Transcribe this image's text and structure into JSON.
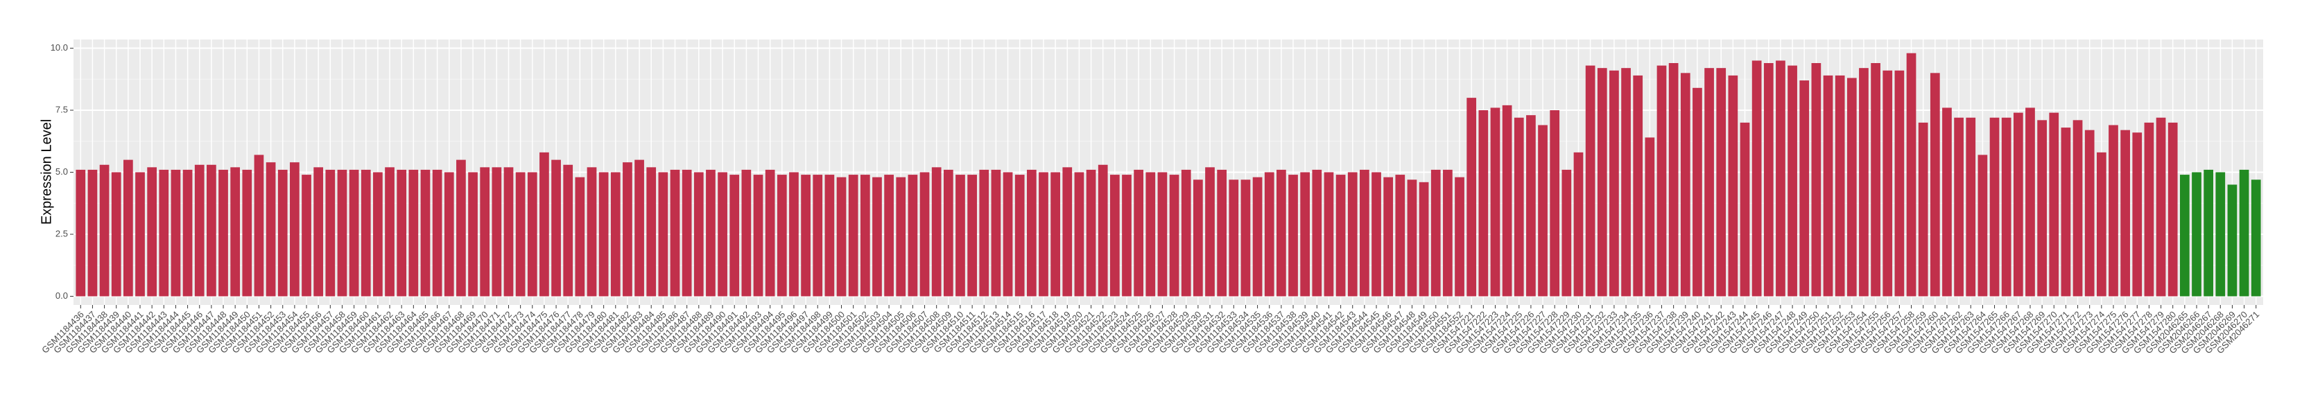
{
  "chart_data": {
    "type": "bar",
    "ylabel": "Expression Level",
    "categories": [
      "GSM1184436",
      "GSM1184437",
      "GSM1184438",
      "GSM1184439",
      "GSM1184440",
      "GSM1184441",
      "GSM1184442",
      "GSM1184443",
      "GSM1184444",
      "GSM1184445",
      "GSM1184446",
      "GSM1184447",
      "GSM1184448",
      "GSM1184449",
      "GSM1184450",
      "GSM1184451",
      "GSM1184452",
      "GSM1184453",
      "GSM1184454",
      "GSM1184455",
      "GSM1184456",
      "GSM1184457",
      "GSM1184458",
      "GSM1184459",
      "GSM1184460",
      "GSM1184461",
      "GSM1184462",
      "GSM1184463",
      "GSM1184464",
      "GSM1184465",
      "GSM1184466",
      "GSM1184467",
      "GSM1184468",
      "GSM1184469",
      "GSM1184470",
      "GSM1184471",
      "GSM1184472",
      "GSM1184473",
      "GSM1184474",
      "GSM1184475",
      "GSM1184476",
      "GSM1184477",
      "GSM1184478",
      "GSM1184479",
      "GSM1184480",
      "GSM1184481",
      "GSM1184482",
      "GSM1184483",
      "GSM1184484",
      "GSM1184485",
      "GSM1184486",
      "GSM1184487",
      "GSM1184488",
      "GSM1184489",
      "GSM1184490",
      "GSM1184491",
      "GSM1184492",
      "GSM1184493",
      "GSM1184494",
      "GSM1184495",
      "GSM1184496",
      "GSM1184497",
      "GSM1184498",
      "GSM1184499",
      "GSM1184500",
      "GSM1184501",
      "GSM1184502",
      "GSM1184503",
      "GSM1184504",
      "GSM1184505",
      "GSM1184506",
      "GSM1184507",
      "GSM1184508",
      "GSM1184509",
      "GSM1184510",
      "GSM1184511",
      "GSM1184512",
      "GSM1184513",
      "GSM1184514",
      "GSM1184515",
      "GSM1184516",
      "GSM1184517",
      "GSM1184518",
      "GSM1184519",
      "GSM1184520",
      "GSM1184521",
      "GSM1184522",
      "GSM1184523",
      "GSM1184524",
      "GSM1184525",
      "GSM1184526",
      "GSM1184527",
      "GSM1184528",
      "GSM1184529",
      "GSM1184530",
      "GSM1184531",
      "GSM1184532",
      "GSM1184533",
      "GSM1184534",
      "GSM1184535",
      "GSM1184536",
      "GSM1184537",
      "GSM1184538",
      "GSM1184539",
      "GSM1184540",
      "GSM1184541",
      "GSM1184542",
      "GSM1184543",
      "GSM1184544",
      "GSM1184545",
      "GSM1184546",
      "GSM1184547",
      "GSM1184548",
      "GSM1184549",
      "GSM1184550",
      "GSM1184551",
      "GSM1184552",
      "GSM1547221",
      "GSM1547222",
      "GSM1547223",
      "GSM1547224",
      "GSM1547225",
      "GSM1547226",
      "GSM1547227",
      "GSM1547228",
      "GSM1547229",
      "GSM1547230",
      "GSM1547231",
      "GSM1547232",
      "GSM1547233",
      "GSM1547234",
      "GSM1547235",
      "GSM1547236",
      "GSM1547237",
      "GSM1547238",
      "GSM1547239",
      "GSM1547240",
      "GSM1547241",
      "GSM1547242",
      "GSM1547243",
      "GSM1547244",
      "GSM1547245",
      "GSM1547246",
      "GSM1547247",
      "GSM1547248",
      "GSM1547249",
      "GSM1547250",
      "GSM1547251",
      "GSM1547252",
      "GSM1547253",
      "GSM1547254",
      "GSM1547255",
      "GSM1547256",
      "GSM1547257",
      "GSM1547258",
      "GSM1547259",
      "GSM1547260",
      "GSM1547261",
      "GSM1547262",
      "GSM1547263",
      "GSM1547264",
      "GSM1547265",
      "GSM1547266",
      "GSM1547267",
      "GSM1547268",
      "GSM1547269",
      "GSM1547270",
      "GSM1547271",
      "GSM1547272",
      "GSM1547273",
      "GSM1547274",
      "GSM1547275",
      "GSM1547276",
      "GSM1547277",
      "GSM1547278",
      "GSM1547279",
      "GSM1547280",
      "GSM2046265",
      "GSM2046266",
      "GSM2046267",
      "GSM2046268",
      "GSM2046269",
      "GSM2046270",
      "GSM2046271"
    ],
    "values": [
      5.1,
      5.1,
      5.3,
      5.0,
      5.5,
      5.0,
      5.2,
      5.1,
      5.1,
      5.1,
      5.3,
      5.3,
      5.1,
      5.2,
      5.1,
      5.7,
      5.4,
      5.1,
      5.4,
      4.9,
      5.2,
      5.1,
      5.1,
      5.1,
      5.1,
      5.0,
      5.2,
      5.1,
      5.1,
      5.1,
      5.1,
      5.0,
      5.5,
      5.0,
      5.2,
      5.2,
      5.2,
      5.0,
      5.0,
      5.8,
      5.5,
      5.3,
      4.8,
      5.2,
      5.0,
      5.0,
      5.4,
      5.5,
      5.2,
      5.0,
      5.1,
      5.1,
      5.0,
      5.1,
      5.0,
      4.9,
      5.1,
      4.9,
      5.1,
      4.9,
      5.0,
      4.9,
      4.9,
      4.9,
      4.8,
      4.9,
      4.9,
      4.8,
      4.9,
      4.8,
      4.9,
      5.0,
      5.2,
      5.1,
      4.9,
      4.9,
      5.1,
      5.1,
      5.0,
      4.9,
      5.1,
      5.0,
      5.0,
      5.2,
      5.0,
      5.1,
      5.3,
      4.9,
      4.9,
      5.1,
      5.0,
      5.0,
      4.9,
      5.1,
      4.7,
      5.2,
      5.1,
      4.7,
      4.7,
      4.8,
      5.0,
      5.1,
      4.9,
      5.0,
      5.1,
      5.0,
      4.9,
      5.0,
      5.1,
      5.0,
      4.8,
      4.9,
      4.7,
      4.6,
      5.1,
      5.1,
      4.8,
      8.0,
      7.5,
      7.6,
      7.7,
      7.2,
      7.3,
      6.9,
      7.5,
      5.1,
      5.8,
      9.3,
      9.2,
      9.1,
      9.2,
      8.9,
      6.4,
      9.3,
      9.4,
      9.0,
      8.4,
      9.2,
      9.2,
      8.9,
      7.0,
      9.5,
      9.4,
      9.5,
      9.3,
      8.7,
      9.4,
      8.9,
      8.9,
      8.8,
      9.2,
      9.4,
      9.1,
      9.1,
      9.8,
      7.0,
      9.0,
      7.6,
      7.2,
      7.2,
      5.7,
      7.2,
      7.2,
      7.4,
      7.6,
      7.1,
      7.4,
      6.8,
      7.1,
      6.7,
      5.8,
      6.9,
      6.7,
      6.6,
      7.0,
      7.2,
      7.0,
      4.9,
      5.0,
      5.1,
      5.0,
      4.5,
      5.1,
      4.7
    ],
    "colors": [
      "#c1304b",
      "#c1304b",
      "#c1304b",
      "#c1304b",
      "#c1304b",
      "#c1304b",
      "#c1304b",
      "#c1304b",
      "#c1304b",
      "#c1304b",
      "#c1304b",
      "#c1304b",
      "#c1304b",
      "#c1304b",
      "#c1304b",
      "#c1304b",
      "#c1304b",
      "#c1304b",
      "#c1304b",
      "#c1304b",
      "#c1304b",
      "#c1304b",
      "#c1304b",
      "#c1304b",
      "#c1304b",
      "#c1304b",
      "#c1304b",
      "#c1304b",
      "#c1304b",
      "#c1304b",
      "#c1304b",
      "#c1304b",
      "#c1304b",
      "#c1304b",
      "#c1304b",
      "#c1304b",
      "#c1304b",
      "#c1304b",
      "#c1304b",
      "#c1304b",
      "#c1304b",
      "#c1304b",
      "#c1304b",
      "#c1304b",
      "#c1304b",
      "#c1304b",
      "#c1304b",
      "#c1304b",
      "#c1304b",
      "#c1304b",
      "#c1304b",
      "#c1304b",
      "#c1304b",
      "#c1304b",
      "#c1304b",
      "#c1304b",
      "#c1304b",
      "#c1304b",
      "#c1304b",
      "#c1304b",
      "#c1304b",
      "#c1304b",
      "#c1304b",
      "#c1304b",
      "#c1304b",
      "#c1304b",
      "#c1304b",
      "#c1304b",
      "#c1304b",
      "#c1304b",
      "#c1304b",
      "#c1304b",
      "#c1304b",
      "#c1304b",
      "#c1304b",
      "#c1304b",
      "#c1304b",
      "#c1304b",
      "#c1304b",
      "#c1304b",
      "#c1304b",
      "#c1304b",
      "#c1304b",
      "#c1304b",
      "#c1304b",
      "#c1304b",
      "#c1304b",
      "#c1304b",
      "#c1304b",
      "#c1304b",
      "#c1304b",
      "#c1304b",
      "#c1304b",
      "#c1304b",
      "#c1304b",
      "#c1304b",
      "#c1304b",
      "#c1304b",
      "#c1304b",
      "#c1304b",
      "#c1304b",
      "#c1304b",
      "#c1304b",
      "#c1304b",
      "#c1304b",
      "#c1304b",
      "#c1304b",
      "#c1304b",
      "#c1304b",
      "#c1304b",
      "#c1304b",
      "#c1304b",
      "#c1304b",
      "#c1304b",
      "#c1304b",
      "#c1304b",
      "#c1304b",
      "#c1304b",
      "#c1304b",
      "#c1304b",
      "#c1304b",
      "#c1304b",
      "#c1304b",
      "#c1304b",
      "#c1304b",
      "#c1304b",
      "#c1304b",
      "#c1304b",
      "#c1304b",
      "#c1304b",
      "#c1304b",
      "#c1304b",
      "#c1304b",
      "#c1304b",
      "#c1304b",
      "#c1304b",
      "#c1304b",
      "#c1304b",
      "#c1304b",
      "#c1304b",
      "#c1304b",
      "#c1304b",
      "#c1304b",
      "#c1304b",
      "#c1304b",
      "#c1304b",
      "#c1304b",
      "#c1304b",
      "#c1304b",
      "#c1304b",
      "#c1304b",
      "#c1304b",
      "#c1304b",
      "#c1304b",
      "#c1304b",
      "#c1304b",
      "#c1304b",
      "#c1304b",
      "#c1304b",
      "#c1304b",
      "#c1304b",
      "#c1304b",
      "#c1304b",
      "#c1304b",
      "#c1304b",
      "#c1304b",
      "#c1304b",
      "#c1304b",
      "#c1304b",
      "#c1304b",
      "#c1304b",
      "#c1304b",
      "#c1304b",
      "#c1304b",
      "#c1304b",
      "#c1304b",
      "#c1304b",
      "#228b22",
      "#228b22",
      "#228b22",
      "#228b22",
      "#228b22",
      "#228b22",
      "#228b22"
    ],
    "ylim": [
      -0.35,
      10.35
    ],
    "yticks": [
      {
        "value": 0,
        "label": "0.0"
      },
      {
        "value": 2.5,
        "label": "2.5"
      },
      {
        "value": 5,
        "label": "5.0"
      },
      {
        "value": 7.5,
        "label": "7.5"
      },
      {
        "value": 10,
        "label": "10.0"
      }
    ],
    "grid": true
  }
}
